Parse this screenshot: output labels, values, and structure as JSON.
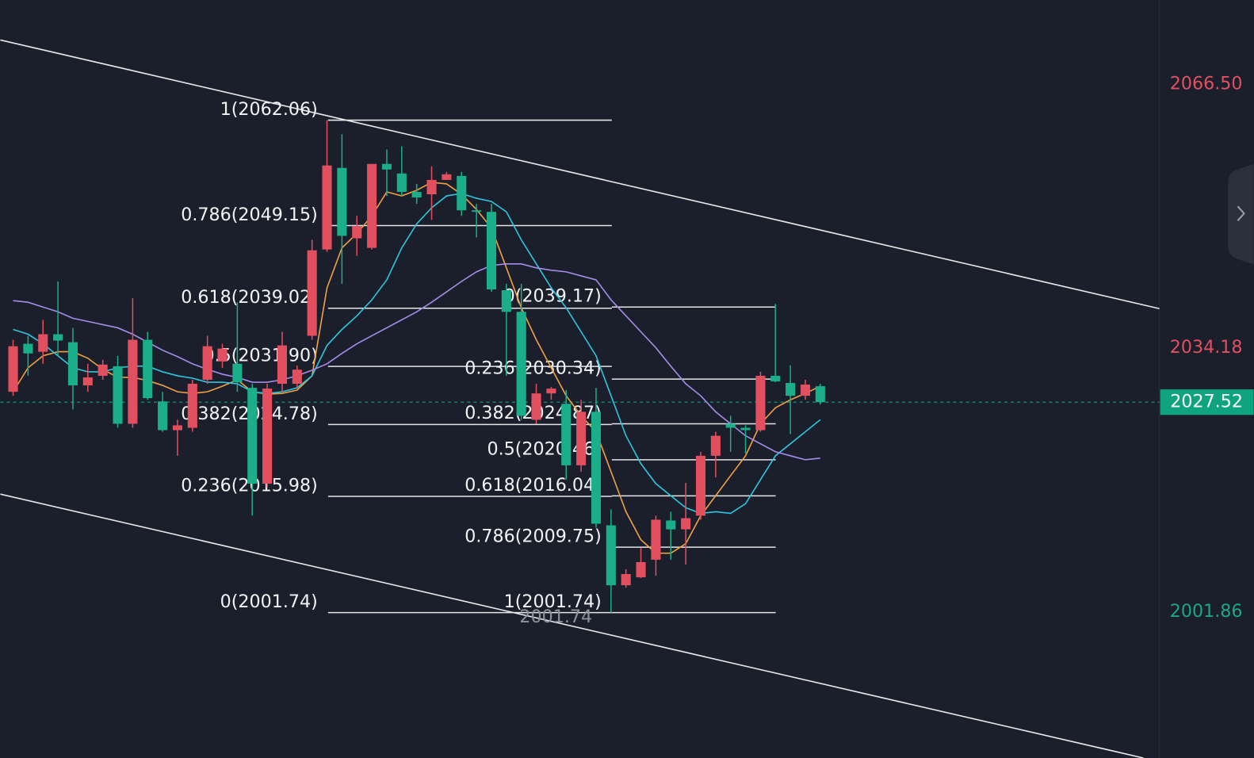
{
  "chart_data": {
    "type": "candlestick",
    "ylim": [
      1983.93,
      2076.78
    ],
    "yticks": [
      {
        "value": 2066.5,
        "label": "2066.50",
        "color": "#e2505f"
      },
      {
        "value": 2034.18,
        "label": "2034.18",
        "color": "#e2505f"
      },
      {
        "value": 2001.86,
        "label": "2001.86",
        "color": "#1aa784"
      }
    ],
    "last_price": {
      "value": 2027.52,
      "label": "2027.52",
      "color": "#10a37f"
    },
    "low_label": {
      "value": 2001.74,
      "label": "2001.74"
    },
    "up_color": "#e2505f",
    "down_color": "#1aae8a",
    "grid": false,
    "open": [
      2028.79,
      2034.67,
      2033.69,
      2035.84,
      2034.86,
      2029.57,
      2030.75,
      2031.92,
      2024.87,
      2035.16,
      2027.61,
      2024.09,
      2024.38,
      2030.26,
      2032.51,
      2032.22,
      2029.28,
      2017.53,
      2029.77,
      2029.77,
      2035.65,
      2046.22,
      2056.21,
      2047.59,
      2046.42,
      2056.7,
      2055.53,
      2053.27,
      2052.98,
      2054.74,
      2055.23,
      2051.02,
      2050.83,
      2041.23,
      2038.58,
      2025.36,
      2028.59,
      2027.32,
      2019.78,
      2026.34,
      2012.43,
      2005.09,
      2006.07,
      2008.22,
      2013.02,
      2011.94,
      2013.61,
      2020.95,
      2024.87,
      2024.38,
      2024.09,
      2030.75,
      2029.87,
      2028.3,
      2029.47
    ],
    "high": [
      2035.16,
      2035.65,
      2037.6,
      2042.31,
      2036.62,
      2032.22,
      2032.71,
      2033.2,
      2040.25,
      2036.13,
      2028.79,
      2025.36,
      2030.26,
      2035.65,
      2034.67,
      2039.76,
      2029.77,
      2029.77,
      2036.13,
      2032.0,
      2047.4,
      2062.06,
      2060.33,
      2050.34,
      2056.7,
      2058.47,
      2058.86,
      2054.25,
      2056.41,
      2055.72,
      2055.72,
      2051.81,
      2051.81,
      2042.01,
      2042.01,
      2029.77,
      2029.38,
      2028.99,
      2027.81,
      2029.28,
      2014.39,
      2007.05,
      2009.69,
      2013.61,
      2014.1,
      2017.62,
      2021.44,
      2023.89,
      2025.85,
      2024.68,
      2031.24,
      2039.56,
      2032.02,
      2030.26,
      2029.77
    ],
    "low": [
      2028.3,
      2030.75,
      2032.22,
      2033.2,
      2026.63,
      2028.79,
      2030.26,
      2024.38,
      2024.38,
      2027.81,
      2023.89,
      2020.95,
      2023.89,
      2029.77,
      2031.73,
      2028.79,
      2013.61,
      2017.04,
      2028.79,
      2029.3,
      2035.16,
      2045.93,
      2042.01,
      2045.44,
      2046.22,
      2052.78,
      2052.78,
      2051.81,
      2049.85,
      2054.74,
      2050.34,
      2047.69,
      2041.03,
      2030.75,
      2025.36,
      2024.87,
      2027.81,
      2018.02,
      2019.0,
      2012.14,
      2001.74,
      2004.79,
      2005.97,
      2006.26,
      2008.22,
      2007.63,
      2013.12,
      2018.31,
      2021.44,
      2021.25,
      2023.89,
      2029.96,
      2023.6,
      2027.81,
      2027.22
    ],
    "close": [
      2034.37,
      2033.49,
      2035.84,
      2035.06,
      2029.57,
      2030.55,
      2032.12,
      2024.87,
      2035.16,
      2028.01,
      2024.09,
      2024.68,
      2029.77,
      2034.37,
      2034.08,
      2029.96,
      2017.53,
      2029.18,
      2034.47,
      2031.5,
      2046.12,
      2056.51,
      2047.89,
      2049.06,
      2056.7,
      2056.02,
      2053.27,
      2052.59,
      2054.74,
      2055.43,
      2051.02,
      2050.83,
      2041.33,
      2038.58,
      2025.85,
      2028.59,
      2029.18,
      2019.78,
      2026.34,
      2012.63,
      2005.09,
      2006.46,
      2007.93,
      2013.12,
      2011.94,
      2013.31,
      2020.95,
      2023.4,
      2024.38,
      2024.09,
      2030.75,
      2030.06,
      2028.3,
      2029.67,
      2027.52
    ],
    "series": [
      {
        "color": "#f0a043",
        "values": [
          2028.79,
          2031.73,
          2033.2,
          2033.69,
          2033.69,
          2032.9,
          2031.53,
          2030.55,
          2030.55,
          2030.16,
          2029.57,
          2028.79,
          2028.59,
          2028.79,
          2029.47,
          2030.26,
          2028.79,
          2028.5,
          2028.59,
          2028.99,
          2030.75,
          2041.52,
          2046.42,
          2048.18,
          2050.34,
          2053.27,
          2052.78,
          2053.47,
          2054.45,
          2054.25,
          2052.98,
          2051.12,
          2048.87,
          2043.97,
          2039.07,
          2035.16,
          2031.73,
          2028.3,
          2025.85,
          2023.89,
          2019.0,
          2014.1,
          2010.67,
          2009.01,
          2009.01,
          2010.18,
          2013.61,
          2016.06,
          2018.51,
          2020.95,
          2024.87,
          2026.83,
          2027.81,
          2028.59,
          2029.47
        ]
      },
      {
        "color": "#2ec5de",
        "values": [
          2036.43,
          2035.84,
          2034.67,
          2033.2,
          2031.73,
          2031.24,
          2031.24,
          2031.73,
          2031.92,
          2031.92,
          2031.24,
          2030.75,
          2030.45,
          2029.96,
          2029.96,
          2029.77,
          2028.79,
          2028.59,
          2028.79,
          2029.28,
          2030.75,
          2034.47,
          2036.43,
          2038.09,
          2040.05,
          2042.5,
          2046.42,
          2049.36,
          2051.32,
          2052.78,
          2053.08,
          2052.49,
          2052.1,
          2050.83,
          2047.4,
          2044.46,
          2041.52,
          2039.07,
          2036.13,
          2033.2,
          2028.3,
          2023.4,
          2019.97,
          2017.53,
          2016.06,
          2014.59,
          2013.9,
          2014.1,
          2013.9,
          2015.08,
          2018.02,
          2020.95,
          2022.42,
          2023.89,
          2025.36
        ]
      },
      {
        "color": "#a78be8",
        "values": [
          2039.95,
          2039.76,
          2039.17,
          2038.58,
          2037.8,
          2037.41,
          2037.02,
          2036.62,
          2035.84,
          2034.86,
          2033.88,
          2033.1,
          2032.22,
          2031.53,
          2030.94,
          2030.55,
          2029.96,
          2029.96,
          2030.26,
          2030.75,
          2031.43,
          2032.22,
          2033.49,
          2034.67,
          2035.65,
          2036.62,
          2037.6,
          2038.58,
          2039.76,
          2041.03,
          2042.31,
          2043.48,
          2044.26,
          2044.46,
          2044.46,
          2043.97,
          2043.68,
          2043.48,
          2042.99,
          2042.5,
          2040.05,
          2038.09,
          2036.13,
          2034.18,
          2031.92,
          2029.77,
          2028.3,
          2026.34,
          2024.87,
          2023.4,
          2022.42,
          2021.44,
          2020.95,
          2020.46,
          2020.66
        ]
      }
    ],
    "fib": [
      {
        "levels": [
          {
            "price": 2062.06,
            "label": "1(2062.06)"
          },
          {
            "price": 2049.15,
            "label": "0.786(2049.15)"
          },
          {
            "price": 2039.02,
            "label": "0.618(2039.02)"
          },
          {
            "price": 2031.9,
            "label": "0.5(2031.90)"
          },
          {
            "price": 2024.78,
            "label": "0.382(2024.78)"
          },
          {
            "price": 2015.98,
            "label": "0.236(2015.98)"
          },
          {
            "price": 2001.74,
            "label": "0(2001.74)"
          }
        ]
      },
      {
        "levels": [
          {
            "price": 2039.17,
            "label": "0(2039.17)"
          },
          {
            "price": 2030.34,
            "label": "0.236(2030.34)"
          },
          {
            "price": 2024.87,
            "label": "0.382(2024.87)"
          },
          {
            "price": 2020.46,
            "label": "0.5(2020.46)"
          },
          {
            "price": 2016.04,
            "label": "0.618(2016.04)"
          },
          {
            "price": 2009.75,
            "label": "0.786(2009.75)"
          },
          {
            "price": 2001.74,
            "label": "1(2001.74)"
          }
        ]
      }
    ]
  }
}
